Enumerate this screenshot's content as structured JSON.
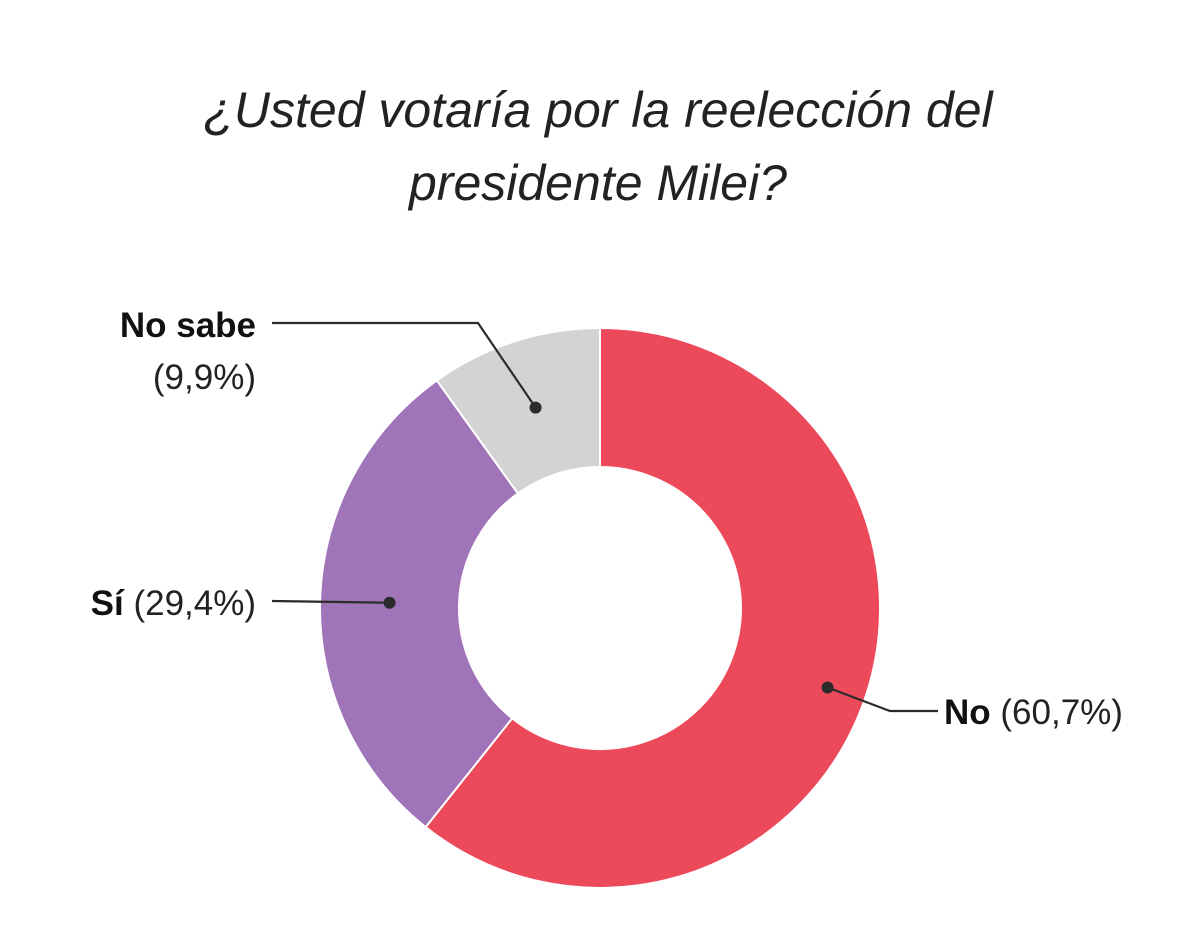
{
  "chart_data": {
    "type": "pie",
    "variant": "donut",
    "title": "¿Usted votaría por la reelección del presidente Milei?",
    "title_lines": [
      "¿Usted votaría por la reelección del",
      "presidente Milei?"
    ],
    "slices": [
      {
        "key": "no",
        "label": "No",
        "value": 60.7,
        "value_label": "(60,7%)",
        "color": "#ec4a5b"
      },
      {
        "key": "si",
        "label": "Sí",
        "value": 29.4,
        "value_label": "(29,4%)",
        "color": "#a074b8"
      },
      {
        "key": "no_sabe",
        "label": "No sabe",
        "value": 9.9,
        "value_label": "(9,9%)",
        "color": "#d3d3d3"
      }
    ],
    "legend": "none",
    "labels": "outside with leader lines"
  }
}
